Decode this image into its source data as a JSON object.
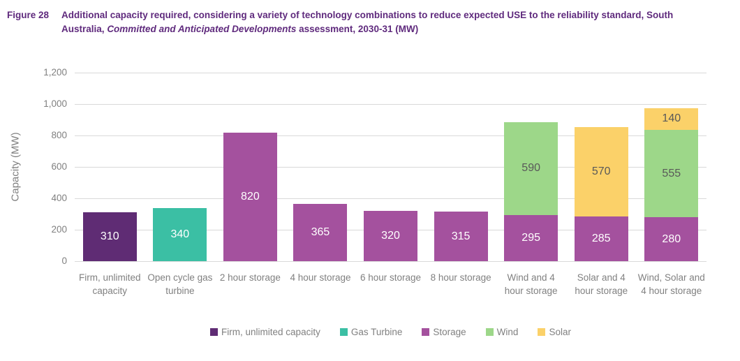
{
  "figure": {
    "label": "Figure 28",
    "title_prefix": "Additional capacity required, considering a variety of technology combinations to reduce expected USE to the reliability standard, South Australia, ",
    "title_italic": "Committed and Anticipated Developments",
    "title_suffix": " assessment, 2030-31 (MW)"
  },
  "chart_data": {
    "type": "bar",
    "stacked": true,
    "title": "",
    "xlabel": "",
    "ylabel": "Capacity (MW)",
    "ylim": [
      0,
      1200
    ],
    "ytick_step": 200,
    "yticks": [
      "0",
      "200",
      "400",
      "600",
      "800",
      "1,000",
      "1,200"
    ],
    "grid": true,
    "legend_position": "bottom",
    "categories": [
      "Firm, unlimited capacity",
      "Open cycle gas turbine",
      "2 hour storage",
      "4 hour storage",
      "6 hour storage",
      "8 hour storage",
      "Wind and 4 hour storage",
      "Solar and 4 hour storage",
      "Wind, Solar and 4 hour storage"
    ],
    "series": [
      {
        "name": "Firm, unlimited capacity",
        "color": "#5F2C74",
        "label_color": "#FFFFFF",
        "values": [
          310,
          0,
          0,
          0,
          0,
          0,
          0,
          0,
          0
        ]
      },
      {
        "name": "Gas Turbine",
        "color": "#3BBFA4",
        "label_color": "#FFFFFF",
        "values": [
          0,
          340,
          0,
          0,
          0,
          0,
          0,
          0,
          0
        ]
      },
      {
        "name": "Storage",
        "color": "#A4519E",
        "label_color": "#FFFFFF",
        "values": [
          0,
          0,
          820,
          365,
          320,
          315,
          295,
          285,
          280
        ]
      },
      {
        "name": "Wind",
        "color": "#9DD789",
        "label_color": "#595959",
        "values": [
          0,
          0,
          0,
          0,
          0,
          0,
          590,
          0,
          555
        ]
      },
      {
        "name": "Solar",
        "color": "#FBD169",
        "label_color": "#595959",
        "values": [
          0,
          0,
          0,
          0,
          0,
          0,
          0,
          570,
          140
        ]
      }
    ],
    "totals": [
      310,
      340,
      820,
      365,
      320,
      315,
      885,
      855,
      975
    ]
  },
  "colors": {
    "title_text": "#5F2A7D",
    "axis_text": "#808080",
    "gridline": "#D9D9D9",
    "background": "#FFFFFF"
  }
}
